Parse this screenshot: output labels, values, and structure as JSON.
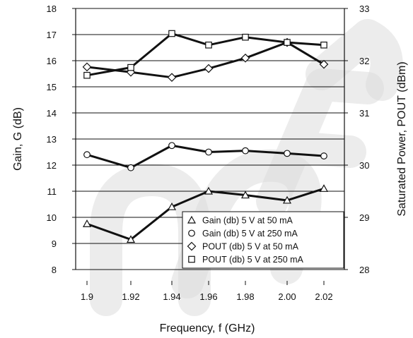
{
  "chart_data": {
    "type": "line",
    "categories": [
      "1.9",
      "1.92",
      "1.94",
      "1.96",
      "1.98",
      "2.00",
      "2.02"
    ],
    "xlabel": "Frequency, f (GHz)",
    "ylabel_left": "Gain, G (dB)",
    "ylabel_right": "Saturated Power, POUT (dBm)",
    "ylim_left": [
      8,
      18
    ],
    "ylim_right": [
      28,
      33
    ],
    "yticks_left": [
      "8",
      "9",
      "10",
      "11",
      "12",
      "13",
      "14",
      "15",
      "16",
      "17",
      "18"
    ],
    "yticks_right": [
      "28",
      "29",
      "30",
      "31",
      "32",
      "33"
    ],
    "grid": true,
    "legend_position": "bottom-right",
    "series": [
      {
        "name": "Gain (db)  5 V at 50 mA",
        "axis": "left",
        "marker": "triangle",
        "values": [
          9.75,
          9.15,
          10.4,
          11.0,
          10.85,
          10.65,
          11.1
        ]
      },
      {
        "name": "Gain (db)  5 V at 250 mA",
        "axis": "left",
        "marker": "circle",
        "values": [
          12.4,
          11.9,
          12.75,
          12.5,
          12.55,
          12.45,
          12.35
        ]
      },
      {
        "name": "POUT (db) 5 V at 50 mA",
        "axis": "right",
        "marker": "diamond",
        "values": [
          31.88,
          31.78,
          31.68,
          31.85,
          32.05,
          32.35,
          31.93
        ]
      },
      {
        "name": "POUT (db) 5 V at 250 mA",
        "axis": "right",
        "marker": "square",
        "values": [
          31.72,
          31.87,
          32.52,
          32.3,
          32.45,
          32.35,
          32.3
        ]
      }
    ]
  },
  "colors": {
    "line": "#111111",
    "grid": "#111111",
    "watermark": "#dcdcdc"
  }
}
